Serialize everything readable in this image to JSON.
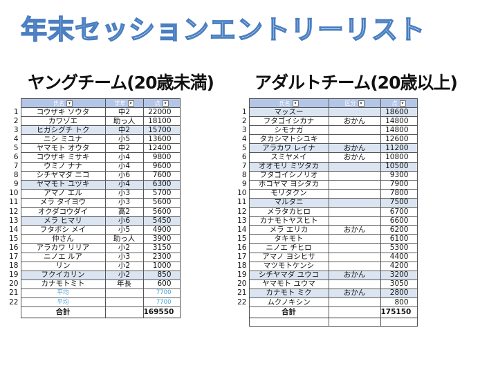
{
  "title": "年末セッションエントリーリスト",
  "young": {
    "heading": "ヤングチーム(20歳未満)",
    "columns": [
      "氏名",
      "学年",
      "点"
    ],
    "rows": [
      {
        "idx": "1",
        "name": "コウザキ ソウタ",
        "grade": "中2",
        "score": "22000",
        "hl": false
      },
      {
        "idx": "2",
        "name": "カワゾエ",
        "grade": "助っ人",
        "score": "18100",
        "hl": false
      },
      {
        "idx": "3",
        "name": "ヒガシグチ トク",
        "grade": "中2",
        "score": "15700",
        "hl": true
      },
      {
        "idx": "4",
        "name": "ニシ ミユナ",
        "grade": "小5",
        "score": "13600",
        "hl": false
      },
      {
        "idx": "5",
        "name": "ヤマモト オウタ",
        "grade": "中2",
        "score": "12400",
        "hl": false
      },
      {
        "idx": "6",
        "name": "コウザキ ミサキ",
        "grade": "小4",
        "score": "9800",
        "hl": false
      },
      {
        "idx": "7",
        "name": "ウミノ ナナ",
        "grade": "小4",
        "score": "9600",
        "hl": false
      },
      {
        "idx": "8",
        "name": "シチヤマダ ニコ",
        "grade": "小6",
        "score": "7600",
        "hl": false
      },
      {
        "idx": "9",
        "name": "ヤマモト ユヅキ",
        "grade": "小4",
        "score": "6300",
        "hl": true
      },
      {
        "idx": "10",
        "name": "アマノ エル",
        "grade": "小3",
        "score": "5700",
        "hl": false
      },
      {
        "idx": "11",
        "name": "メラ タイヨウ",
        "grade": "小3",
        "score": "5600",
        "hl": false
      },
      {
        "idx": "12",
        "name": "オクダコウダイ",
        "grade": "高2",
        "score": "5600",
        "hl": false
      },
      {
        "idx": "13",
        "name": "メラ ヒマリ",
        "grade": "小6",
        "score": "5450",
        "hl": true
      },
      {
        "idx": "14",
        "name": "フタボシ メイ",
        "grade": "小5",
        "score": "4900",
        "hl": false
      },
      {
        "idx": "15",
        "name": "仲さん",
        "grade": "助っ人",
        "score": "3900",
        "hl": false
      },
      {
        "idx": "16",
        "name": "アラカワ リリア",
        "grade": "小2",
        "score": "3150",
        "hl": false
      },
      {
        "idx": "17",
        "name": "ニノエ ルア",
        "grade": "小3",
        "score": "2300",
        "hl": false
      },
      {
        "idx": "18",
        "name": "リン",
        "grade": "小2",
        "score": "1000",
        "hl": false
      },
      {
        "idx": "19",
        "name": "フクイカリン",
        "grade": "小2",
        "score": "850",
        "hl": true
      },
      {
        "idx": "20",
        "name": "カナモトミト",
        "grade": "年長",
        "score": "600",
        "hl": false
      },
      {
        "idx": "21",
        "name": "平均",
        "grade": "",
        "score": "7700",
        "hl": false,
        "avg": true
      },
      {
        "idx": "22",
        "name": "平均",
        "grade": "",
        "score": "7700",
        "hl": false,
        "avg": true
      }
    ],
    "total_label": "合計",
    "total_value": "169550"
  },
  "adult": {
    "heading": "アダルトチーム(20歳以上)",
    "columns": [
      "氏名",
      "区分",
      "点"
    ],
    "rows": [
      {
        "idx": "1",
        "name": "マッスー",
        "grade": "",
        "score": "18600",
        "hl": true
      },
      {
        "idx": "2",
        "name": "フタゴイシカナ",
        "grade": "おかん",
        "score": "14800",
        "hl": false
      },
      {
        "idx": "3",
        "name": "シモナガ",
        "grade": "",
        "score": "14800",
        "hl": false
      },
      {
        "idx": "4",
        "name": "タカシマトシユキ",
        "grade": "",
        "score": "12600",
        "hl": false
      },
      {
        "idx": "5",
        "name": "アラカワ レイナ",
        "grade": "おかん",
        "score": "11200",
        "hl": true
      },
      {
        "idx": "6",
        "name": "スミヤメイ",
        "grade": "おかん",
        "score": "10800",
        "hl": false
      },
      {
        "idx": "7",
        "name": "オオモリ ミツタカ",
        "grade": "",
        "score": "10500",
        "hl": true
      },
      {
        "idx": "8",
        "name": "フタゴイシノリオ",
        "grade": "",
        "score": "9300",
        "hl": false
      },
      {
        "idx": "9",
        "name": "ホコヤマ ヨシタカ",
        "grade": "",
        "score": "7900",
        "hl": false
      },
      {
        "idx": "10",
        "name": "モリタクン",
        "grade": "",
        "score": "7800",
        "hl": false
      },
      {
        "idx": "11",
        "name": "マルタニ",
        "grade": "",
        "score": "7500",
        "hl": true
      },
      {
        "idx": "12",
        "name": "メラタカヒロ",
        "grade": "",
        "score": "6700",
        "hl": false
      },
      {
        "idx": "13",
        "name": "カナモトヤスヒト",
        "grade": "",
        "score": "6600",
        "hl": false
      },
      {
        "idx": "14",
        "name": "メラ エリカ",
        "grade": "おかん",
        "score": "6200",
        "hl": false
      },
      {
        "idx": "15",
        "name": "タキモト",
        "grade": "",
        "score": "6100",
        "hl": false
      },
      {
        "idx": "16",
        "name": "ニノエ チヒロ",
        "grade": "",
        "score": "5300",
        "hl": false
      },
      {
        "idx": "17",
        "name": "アマノ ヨシヒサ",
        "grade": "",
        "score": "4400",
        "hl": false
      },
      {
        "idx": "18",
        "name": "マツモトケンシ",
        "grade": "",
        "score": "4200",
        "hl": false
      },
      {
        "idx": "19",
        "name": "シチヤマダ ユウコ",
        "grade": "おかん",
        "score": "3200",
        "hl": true
      },
      {
        "idx": "20",
        "name": "ヤマモト ユウマ",
        "grade": "",
        "score": "3050",
        "hl": false
      },
      {
        "idx": "21",
        "name": "カナモト ミク",
        "grade": "おかん",
        "score": "2800",
        "hl": true
      },
      {
        "idx": "22",
        "name": "ムクノキシン",
        "grade": "",
        "score": "800",
        "hl": false
      }
    ],
    "total_label": "合計",
    "total_value": "175150"
  }
}
